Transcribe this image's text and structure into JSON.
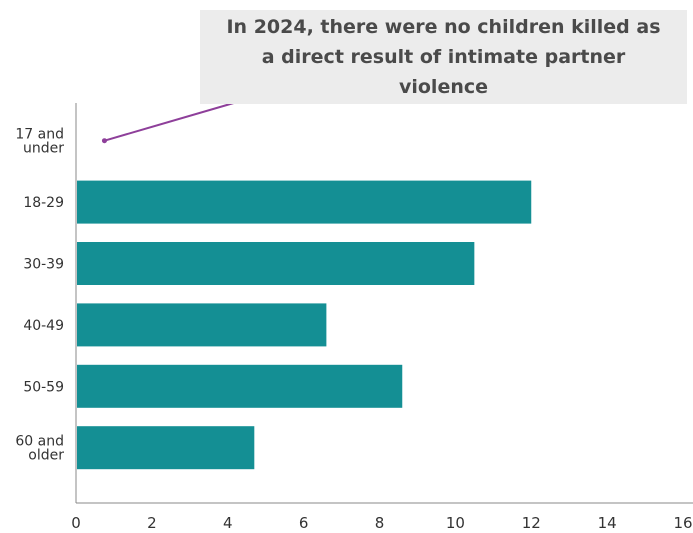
{
  "chart_data": {
    "type": "bar",
    "orientation": "horizontal",
    "categories": [
      "17 and under",
      "18-29",
      "30-39",
      "40-49",
      "50-59",
      "60 and older"
    ],
    "values": [
      0,
      12,
      10.5,
      6.6,
      8.6,
      4.7
    ],
    "xlim": [
      0,
      16
    ],
    "xticks": [
      0,
      2,
      4,
      6,
      8,
      10,
      12,
      14,
      16
    ],
    "grid": false,
    "legend": "none",
    "bar_color": "#148f94",
    "annotation": {
      "text": "In 2024, there were no children killed as a direct result of intimate partner violence",
      "target_category": "17 and under",
      "box_color": "#ececec",
      "line_color": "#8e3f9a"
    }
  }
}
